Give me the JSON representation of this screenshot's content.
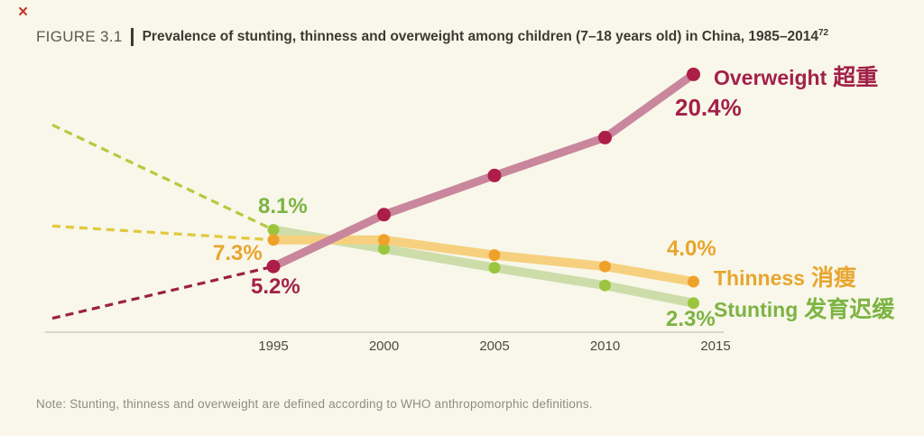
{
  "overlay": {
    "close": "×"
  },
  "header": {
    "figure_label": "FIGURE 3.1",
    "title": "Prevalence of stunting, thinness and overweight among children (7–18 years old) in China, 1985–2014",
    "superscript": "72"
  },
  "chart_data": {
    "type": "line",
    "title": "Prevalence of stunting, thinness and overweight among children (7–18 years old) in China, 1985–2014",
    "x": [
      1985,
      1995,
      2000,
      2005,
      2010,
      2014
    ],
    "x_axis_ticks": [
      "1995",
      "2000",
      "2005",
      "2010",
      "2015"
    ],
    "tick_years": [
      1995,
      2000,
      2005,
      2010,
      2015
    ],
    "ylim": [
      0,
      22
    ],
    "grid": false,
    "legend_position": "right of line ends",
    "dashed_segment_meaning": "1985 to 1995 shown as dashed extrapolation",
    "series": [
      {
        "name": "Overweight",
        "name_zh": "超重",
        "values": [
          1.1,
          5.2,
          9.3,
          12.4,
          15.4,
          20.4
        ],
        "dashed_until_year": 1995,
        "start_label": "5.2%",
        "end_label": "20.4%",
        "band_color": "#c9869c",
        "dot_color": "#ac1e48",
        "dash_color": "#9b2144",
        "text_color": "#a32149",
        "band_width": 9,
        "dot_radius": 7.5
      },
      {
        "name": "Thinness",
        "name_zh": "消瘦",
        "values": [
          8.4,
          7.3,
          7.3,
          6.1,
          5.2,
          4.0
        ],
        "dashed_until_year": 1995,
        "start_label": "7.3%",
        "end_label": "4.0%",
        "band_color": "#f6d07e",
        "dot_color": "#efa22b",
        "dash_color": "#e2c83e",
        "text_color": "#e8a52e",
        "band_width": 10,
        "dot_radius": 6.5
      },
      {
        "name": "Stunting",
        "name_zh": "发育迟缓",
        "values": [
          16.4,
          8.1,
          6.6,
          5.1,
          3.7,
          2.3
        ],
        "dashed_until_year": 1995,
        "start_label": "8.1%",
        "end_label": "2.3%",
        "band_color": "#cdddaa",
        "dot_color": "#9cc53f",
        "dash_color": "#b6ca3e",
        "text_color": "#7db343",
        "band_width": 10,
        "dot_radius": 6.5
      }
    ]
  },
  "note": "Note: Stunting, thinness and overweight are defined according to WHO anthropomorphic definitions."
}
